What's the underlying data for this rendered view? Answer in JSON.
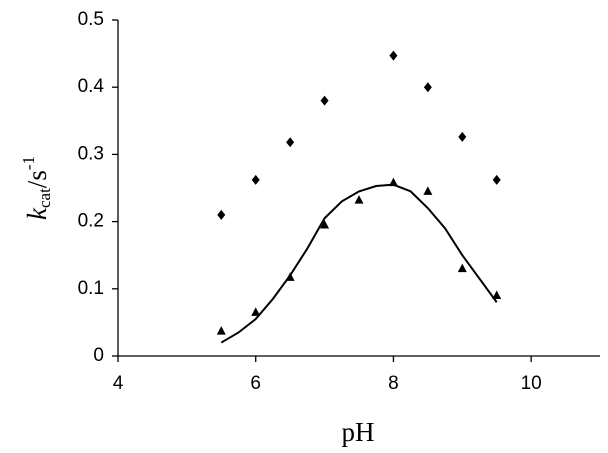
{
  "chart_data": {
    "type": "scatter",
    "x_label": "pH",
    "y_label": {
      "symbol": "k",
      "subscript": "cat",
      "unit": "/s",
      "superscript": "-1"
    },
    "xlim": [
      4,
      11
    ],
    "xticks": [
      4,
      6,
      8,
      10
    ],
    "ylim": [
      0,
      0.5
    ],
    "yticks": [
      0,
      0.1,
      0.2,
      0.3,
      0.4,
      0.5
    ],
    "grid": false,
    "series": [
      {
        "style": "diamond",
        "color": "#000000",
        "x": [
          5.5,
          6,
          6.5,
          7,
          8,
          8.5,
          9,
          9.5
        ],
        "values": [
          0.21,
          0.262,
          0.318,
          0.38,
          0.447,
          0.4,
          0.326,
          0.262
        ]
      },
      {
        "style": "triangle",
        "color": "#000000",
        "x": [
          5.5,
          6,
          6.5,
          7,
          7.5,
          8,
          8.5,
          9,
          9.5
        ],
        "values": [
          0.037,
          0.065,
          0.117,
          0.195,
          0.232,
          0.258,
          0.245,
          0.13,
          0.09
        ]
      },
      {
        "style": "line",
        "color": "#000000",
        "x": [
          5.5,
          5.75,
          6,
          6.25,
          6.5,
          6.75,
          7,
          7.25,
          7.5,
          7.75,
          8,
          8.25,
          8.5,
          8.75,
          9,
          9.25,
          9.5
        ],
        "values": [
          0.02,
          0.035,
          0.055,
          0.085,
          0.12,
          0.16,
          0.205,
          0.23,
          0.245,
          0.253,
          0.255,
          0.245,
          0.22,
          0.19,
          0.15,
          0.115,
          0.08
        ]
      }
    ]
  }
}
